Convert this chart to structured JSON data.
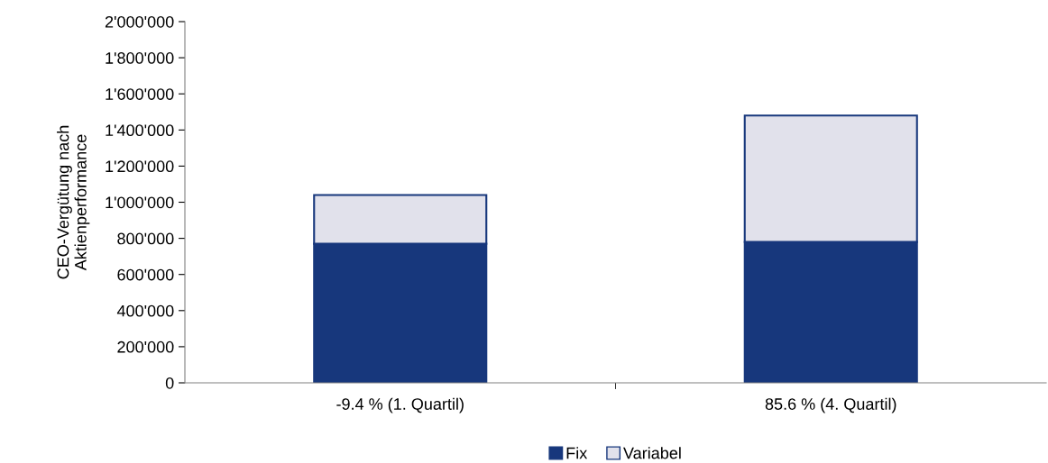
{
  "chart_data": {
    "type": "bar",
    "stacked": true,
    "ylabel": "CEO-Vergütung nach Aktienperformance",
    "categories": [
      "-9.4 % (1. Quartil)",
      "85.6 % (4. Quartil)"
    ],
    "series": [
      {
        "name": "Fix",
        "color": "#17377c",
        "values": [
          770000,
          780000
        ]
      },
      {
        "name": "Variabel",
        "color": "#e1e1eb",
        "values": [
          270000,
          700000
        ]
      }
    ],
    "ylim": [
      0,
      2000000
    ],
    "yticks": [
      0,
      {
        "value": 200000,
        "label": "200'000"
      },
      {
        "value": 400000,
        "label": "400'000"
      },
      {
        "value": 600000,
        "label": "600'000"
      },
      {
        "value": 800000,
        "label": "800'000"
      },
      {
        "value": 1000000,
        "label": "1'000'000"
      },
      {
        "value": 1200000,
        "label": "1'200'000"
      },
      {
        "value": 1400000,
        "label": "1'400'000"
      },
      {
        "value": 1600000,
        "label": "1'600'000"
      },
      {
        "value": 1800000,
        "label": "1'800'000"
      },
      {
        "value": 2000000,
        "label": "2'000'000"
      }
    ],
    "grid": false,
    "legend": "bottom"
  }
}
